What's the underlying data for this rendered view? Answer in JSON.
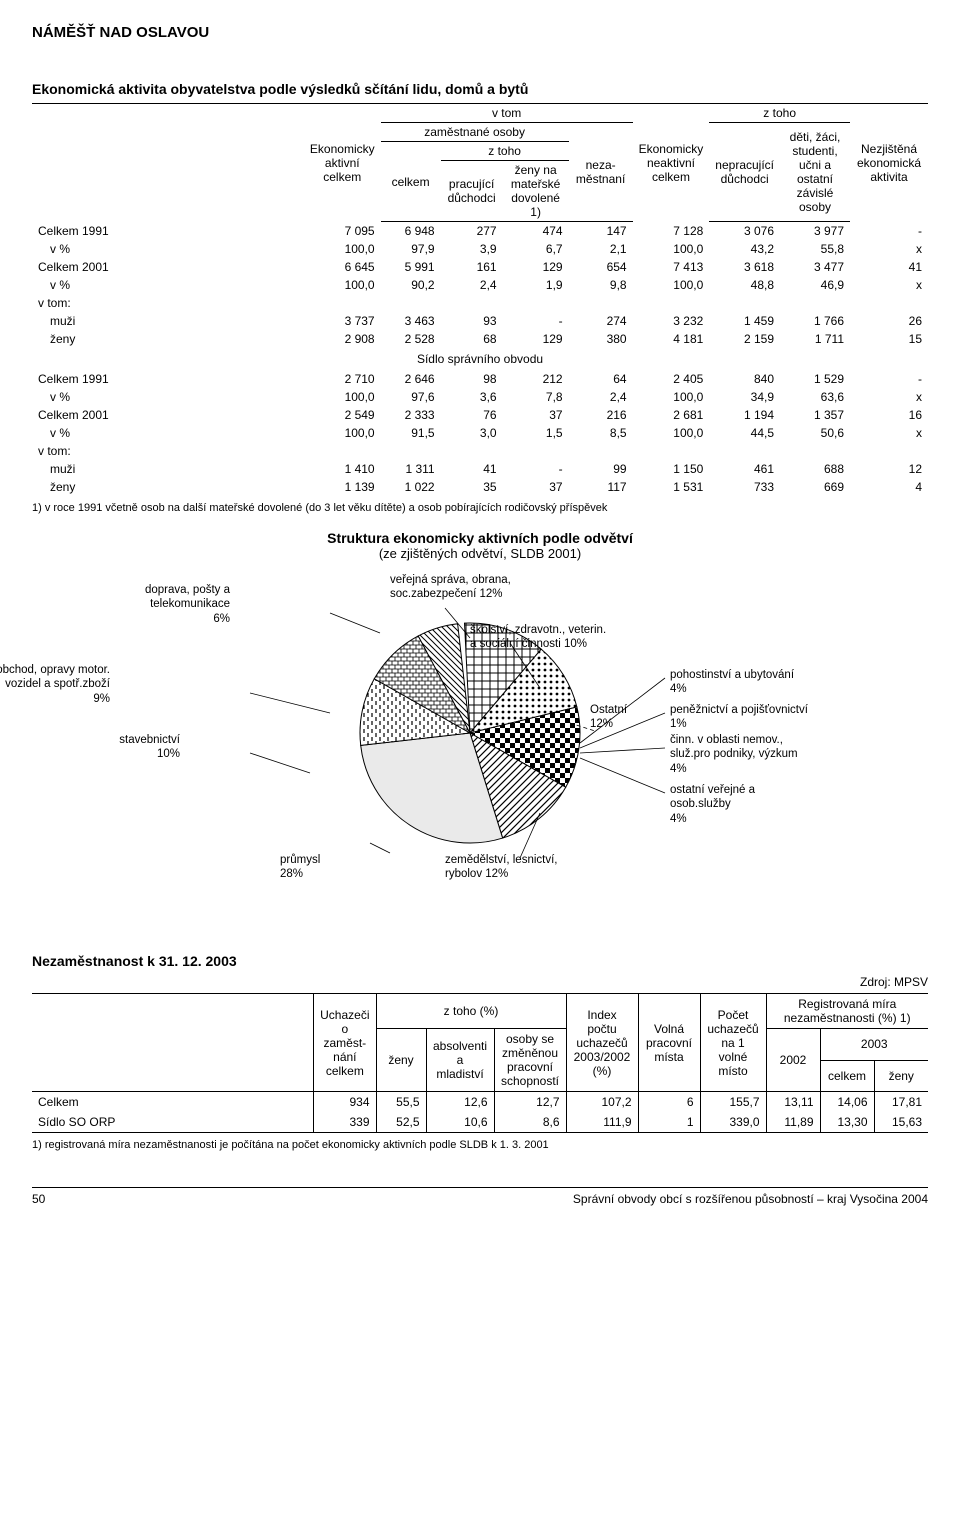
{
  "page": {
    "region_title": "NÁMĚŠŤ NAD OSLAVOU",
    "section1_title": "Ekonomická aktivita obyvatelstva podle výsledků sčítání lidu, domů a bytů",
    "footnote1": "1) v roce 1991 včetně osob na další mateřské dovolené (do 3 let věku dítěte) a osob pobírajících rodičovský příspěvek",
    "chart_title": "Struktura ekonomicky aktivních podle odvětví",
    "chart_subtitle": "(ze zjištěných odvětví, SLDB 2001)",
    "section2_title": "Nezaměstnanost k 31. 12. 2003",
    "source": "Zdroj: MPSV",
    "footnote2": "1) registrovaná míra nezaměstnanosti je počítána na počet ekonomicky aktivních podle SLDB k 1. 3. 2001",
    "pagenum": "50",
    "footer_right": "Správní obvody obcí s rozšířenou působností – kraj Vysočina 2004"
  },
  "table1": {
    "headers": {
      "h_aktivni": "Ekonomicky aktivní celkem",
      "h_vtom": "v tom",
      "h_zam": "zaměstnané osoby",
      "h_ztoho": "z toho",
      "h_celkem": "celkem",
      "h_duch": "pracující důchodci",
      "h_mater": "ženy na mateřské dovolené 1)",
      "h_nezam": "neza-\nměstnaní",
      "h_neakt": "Ekonomicky neaktivní celkem",
      "h_ztoho2": "z toho",
      "h_neprac": "nepracující důchodci",
      "h_deti": "děti, žáci, studenti, učni a ostatní závislé osoby",
      "h_nezj": "Nezjištěná ekonomická aktivita"
    },
    "rows": [
      {
        "label": "Celkem 1991",
        "c": [
          "7 095",
          "6 948",
          "277",
          "474",
          "147",
          "7 128",
          "3 076",
          "3 977",
          "-"
        ]
      },
      {
        "label": "    v %",
        "c": [
          "100,0",
          "97,9",
          "3,9",
          "6,7",
          "2,1",
          "100,0",
          "43,2",
          "55,8",
          "x"
        ]
      },
      {
        "label": "Celkem 2001",
        "c": [
          "6 645",
          "5 991",
          "161",
          "129",
          "654",
          "7 413",
          "3 618",
          "3 477",
          "41"
        ]
      },
      {
        "label": "    v %",
        "c": [
          "100,0",
          "90,2",
          "2,4",
          "1,9",
          "9,8",
          "100,0",
          "48,8",
          "46,9",
          "x"
        ]
      },
      {
        "label": "v tom:",
        "c": [
          "",
          "",
          "",
          "",
          "",
          "",
          "",
          "",
          ""
        ]
      },
      {
        "label": "    muži",
        "c": [
          "3 737",
          "3 463",
          "93",
          "-",
          "274",
          "3 232",
          "1 459",
          "1 766",
          "26"
        ]
      },
      {
        "label": "    ženy",
        "c": [
          "2 908",
          "2 528",
          "68",
          "129",
          "380",
          "4 181",
          "2 159",
          "1 711",
          "15"
        ]
      }
    ],
    "section_label": "Sídlo správního obvodu",
    "rows2": [
      {
        "label": "Celkem 1991",
        "c": [
          "2 710",
          "2 646",
          "98",
          "212",
          "64",
          "2 405",
          "840",
          "1 529",
          "-"
        ]
      },
      {
        "label": "    v %",
        "c": [
          "100,0",
          "97,6",
          "3,6",
          "7,8",
          "2,4",
          "100,0",
          "34,9",
          "63,6",
          "x"
        ]
      },
      {
        "label": "Celkem 2001",
        "c": [
          "2 549",
          "2 333",
          "76",
          "37",
          "216",
          "2 681",
          "1 194",
          "1 357",
          "16"
        ]
      },
      {
        "label": "    v %",
        "c": [
          "100,0",
          "91,5",
          "3,0",
          "1,5",
          "8,5",
          "100,0",
          "44,5",
          "50,6",
          "x"
        ]
      },
      {
        "label": "v tom:",
        "c": [
          "",
          "",
          "",
          "",
          "",
          "",
          "",
          "",
          ""
        ]
      },
      {
        "label": "    muži",
        "c": [
          "1 410",
          "1 311",
          "41",
          "-",
          "99",
          "1 150",
          "461",
          "688",
          "12"
        ]
      },
      {
        "label": "    ženy",
        "c": [
          "1 139",
          "1 022",
          "35",
          "37",
          "117",
          "1 531",
          "733",
          "669",
          "4"
        ]
      }
    ]
  },
  "pie": {
    "slices": [
      {
        "label": "veřejná správa, obrana,\nsoc.zabezpečení 12%",
        "pct": 12,
        "pattern": "p-cross"
      },
      {
        "label": "školství, zdravotn., veterin.\na sociální činnosti 10%",
        "pct": 10,
        "pattern": "p-dots"
      },
      {
        "label": "Ostatní\n12%",
        "pct": 12,
        "pattern": "p-check"
      },
      {
        "label": "zemědělství, lesnictví,\nrybolov 12%",
        "pct": 12,
        "pattern": "p-diag"
      },
      {
        "label": "průmysl\n28%",
        "pct": 28,
        "pattern": "p-solid"
      },
      {
        "label": "stavebnictví\n10%",
        "pct": 10,
        "pattern": "p-vdash"
      },
      {
        "label": "obchod, opravy motor.\nvozidel a spotř.zboží\n9%",
        "pct": 9,
        "pattern": "p-brick"
      },
      {
        "label": "doprava, pošty a\ntelekomunikace\n6%",
        "pct": 6,
        "pattern": "p-hatch"
      }
    ],
    "right_labels": [
      "pohostinství a ubytování\n4%",
      "peněžnictví a pojišťovnictví\n1%",
      "činn. v oblasti nemov.,\nsluž.pro podniky, výzkum\n4%",
      "ostatní veřejné a\nosob.služby\n4%"
    ],
    "colors": {
      "stroke": "#000",
      "fill_bg": "#fff"
    }
  },
  "table2": {
    "headers": {
      "h_uch": "Uchazeči o zaměst-\nnání celkem",
      "h_ztoho": "z toho (%)",
      "h_zeny": "ženy",
      "h_abs": "absolventi a mladiství",
      "h_zps": "osoby se změněnou pracovní schopností",
      "h_idx": "Index počtu uchazečů 2003/2002 (%)",
      "h_volna": "Volná pracovní místa",
      "h_na1": "Počet uchazečů na 1 volné místo",
      "h_rmn": "Registrovaná míra nezaměstnanosti (%) 1)",
      "h_2002": "2002",
      "h_2003": "2003",
      "h_celkem": "celkem",
      "h_zeny2": "ženy"
    },
    "rows": [
      {
        "label": "Celkem",
        "c": [
          "934",
          "55,5",
          "12,6",
          "12,7",
          "107,2",
          "6",
          "155,7",
          "13,11",
          "14,06",
          "17,81"
        ]
      },
      {
        "label": "Sídlo SO ORP",
        "c": [
          "339",
          "52,5",
          "10,6",
          "8,6",
          "111,9",
          "1",
          "339,0",
          "11,89",
          "13,30",
          "15,63"
        ]
      }
    ]
  }
}
